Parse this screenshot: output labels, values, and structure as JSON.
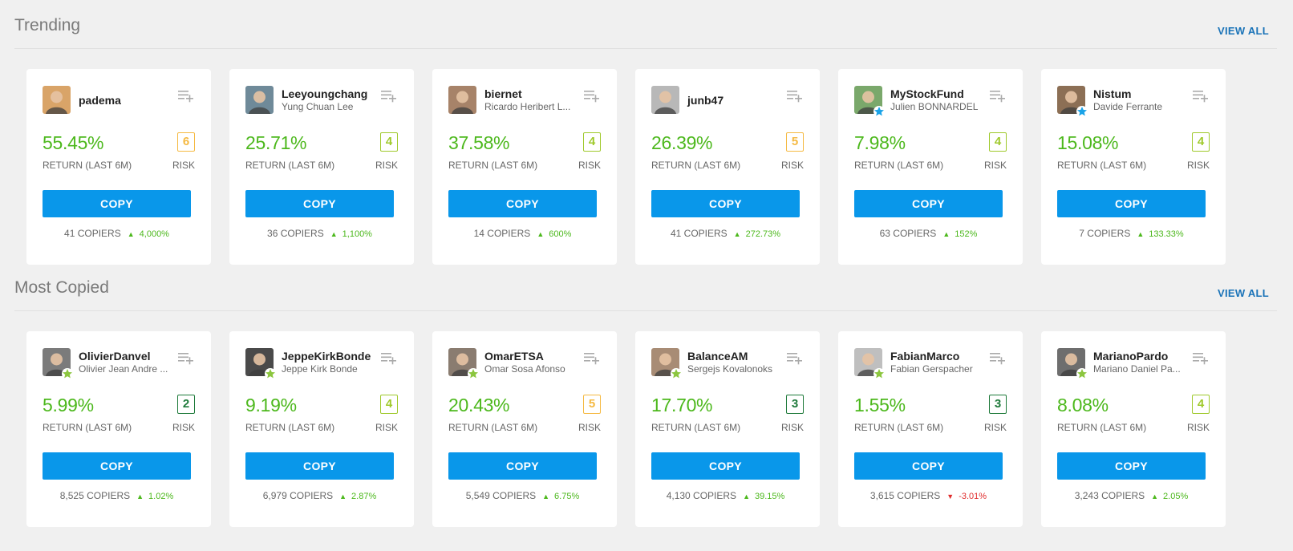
{
  "colors": {
    "accent": "#0997ea",
    "positive": "#4cb81c",
    "negative": "#e02c2c",
    "risk_yellow": "#f5b941",
    "risk_lime": "#9fc92b",
    "risk_green": "#1e7a3a"
  },
  "sections": [
    {
      "title": "Trending",
      "view_all": "VIEW ALL",
      "cards": [
        {
          "username": "padema",
          "fullname": "",
          "return": "55.45%",
          "return_label": "RETURN (LAST 6M)",
          "risk": "6",
          "risk_label": "RISK",
          "copy_label": "COPY",
          "copiers": "41 COPIERS",
          "change": "4,000%",
          "change_dir": "up",
          "badge": "none",
          "avatar_color": "#d9a468"
        },
        {
          "username": "Leeyoungchang",
          "fullname": "Yung Chuan Lee",
          "return": "25.71%",
          "return_label": "RETURN (LAST 6M)",
          "risk": "4",
          "risk_label": "RISK",
          "copy_label": "COPY",
          "copiers": "36 COPIERS",
          "change": "1,100%",
          "change_dir": "up",
          "badge": "none",
          "avatar_color": "#6f8a99"
        },
        {
          "username": "biernet",
          "fullname": "Ricardo Heribert L...",
          "return": "37.58%",
          "return_label": "RETURN (LAST 6M)",
          "risk": "4",
          "risk_label": "RISK",
          "copy_label": "COPY",
          "copiers": "14 COPIERS",
          "change": "600%",
          "change_dir": "up",
          "badge": "none",
          "avatar_color": "#a78369"
        },
        {
          "username": "junb47",
          "fullname": "",
          "return": "26.39%",
          "return_label": "RETURN (LAST 6M)",
          "risk": "5",
          "risk_label": "RISK",
          "copy_label": "COPY",
          "copiers": "41 COPIERS",
          "change": "272.73%",
          "change_dir": "up",
          "badge": "none",
          "avatar_color": "#b8b8b8"
        },
        {
          "username": "MyStockFund",
          "fullname": "Julien BONNARDEL",
          "return": "7.98%",
          "return_label": "RETURN (LAST 6M)",
          "risk": "4",
          "risk_label": "RISK",
          "copy_label": "COPY",
          "copiers": "63 COPIERS",
          "change": "152%",
          "change_dir": "up",
          "badge": "blue",
          "avatar_color": "#7aa86b"
        },
        {
          "username": "Nistum",
          "fullname": "Davide Ferrante",
          "return": "15.08%",
          "return_label": "RETURN (LAST 6M)",
          "risk": "4",
          "risk_label": "RISK",
          "copy_label": "COPY",
          "copiers": "7 COPIERS",
          "change": "133.33%",
          "change_dir": "up",
          "badge": "blue",
          "avatar_color": "#8c6f55"
        }
      ]
    },
    {
      "title": "Most Copied",
      "view_all": "VIEW ALL",
      "cards": [
        {
          "username": "OlivierDanvel",
          "fullname": "Olivier Jean Andre ...",
          "return": "5.99%",
          "return_label": "RETURN (LAST 6M)",
          "risk": "2",
          "risk_label": "RISK",
          "copy_label": "COPY",
          "copiers": "8,525 COPIERS",
          "change": "1.02%",
          "change_dir": "up",
          "badge": "green",
          "avatar_color": "#7b7b7b"
        },
        {
          "username": "JeppeKirkBonde",
          "fullname": "Jeppe Kirk Bonde",
          "return": "9.19%",
          "return_label": "RETURN (LAST 6M)",
          "risk": "4",
          "risk_label": "RISK",
          "copy_label": "COPY",
          "copiers": "6,979 COPIERS",
          "change": "2.87%",
          "change_dir": "up",
          "badge": "green",
          "avatar_color": "#4a4a4a"
        },
        {
          "username": "OmarETSA",
          "fullname": "Omar Sosa Afonso",
          "return": "20.43%",
          "return_label": "RETURN (LAST 6M)",
          "risk": "5",
          "risk_label": "RISK",
          "copy_label": "COPY",
          "copiers": "5,549 COPIERS",
          "change": "6.75%",
          "change_dir": "up",
          "badge": "green",
          "avatar_color": "#8a7c70"
        },
        {
          "username": "BalanceAM",
          "fullname": "Sergejs Kovalonoks",
          "return": "17.70%",
          "return_label": "RETURN (LAST 6M)",
          "risk": "3",
          "risk_label": "RISK",
          "copy_label": "COPY",
          "copiers": "4,130 COPIERS",
          "change": "39.15%",
          "change_dir": "up",
          "badge": "green",
          "avatar_color": "#a88c75"
        },
        {
          "username": "FabianMarco",
          "fullname": "Fabian Gerspacher",
          "return": "1.55%",
          "return_label": "RETURN (LAST 6M)",
          "risk": "3",
          "risk_label": "RISK",
          "copy_label": "COPY",
          "copiers": "3,615 COPIERS",
          "change": "-3.01%",
          "change_dir": "down",
          "badge": "green",
          "avatar_color": "#bfbfbf"
        },
        {
          "username": "MarianoPardo",
          "fullname": "Mariano Daniel Pa...",
          "return": "8.08%",
          "return_label": "RETURN (LAST 6M)",
          "risk": "4",
          "risk_label": "RISK",
          "copy_label": "COPY",
          "copiers": "3,243 COPIERS",
          "change": "2.05%",
          "change_dir": "up",
          "badge": "green",
          "avatar_color": "#6e6e6e"
        }
      ]
    }
  ]
}
